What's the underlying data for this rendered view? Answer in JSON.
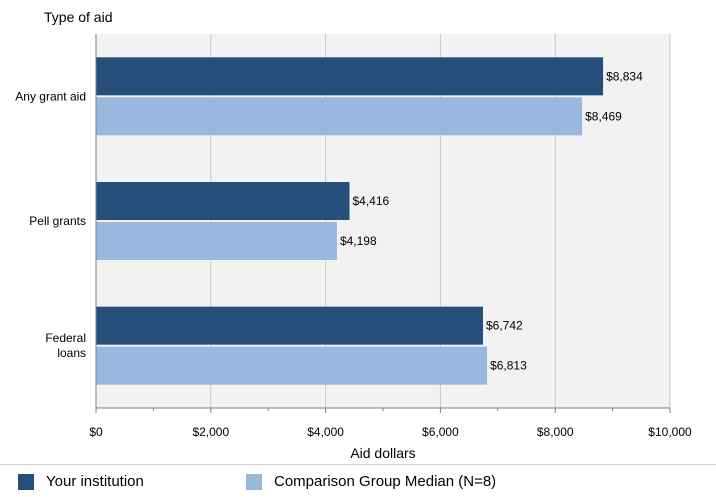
{
  "chart_data": {
    "type": "bar",
    "orientation": "horizontal",
    "y_axis_title": "Type of aid",
    "xlabel": "Aid dollars",
    "categories": [
      {
        "label_lines": [
          "Any grant aid"
        ]
      },
      {
        "label_lines": [
          "Pell grants"
        ]
      },
      {
        "label_lines": [
          "Federal",
          "loans"
        ]
      }
    ],
    "series": [
      {
        "name": "Your institution",
        "color": "#264e7a",
        "values": [
          8834,
          4416,
          6742
        ],
        "labels": [
          "$8,834",
          "$4,416",
          "$6,742"
        ]
      },
      {
        "name": "Comparison Group Median (N=8)",
        "color": "#9ab8df",
        "values": [
          8469,
          4198,
          6813
        ],
        "labels": [
          "$8,469",
          "$4,198",
          "$6,813"
        ]
      }
    ],
    "xlim": [
      0,
      10000
    ],
    "x_ticks": [
      0,
      2000,
      4000,
      6000,
      8000,
      10000
    ],
    "x_tick_labels": [
      "$0",
      "$2,000",
      "$4,000",
      "$6,000",
      "$8,000",
      "$10,000"
    ],
    "grid": true,
    "legend_position": "bottom"
  }
}
